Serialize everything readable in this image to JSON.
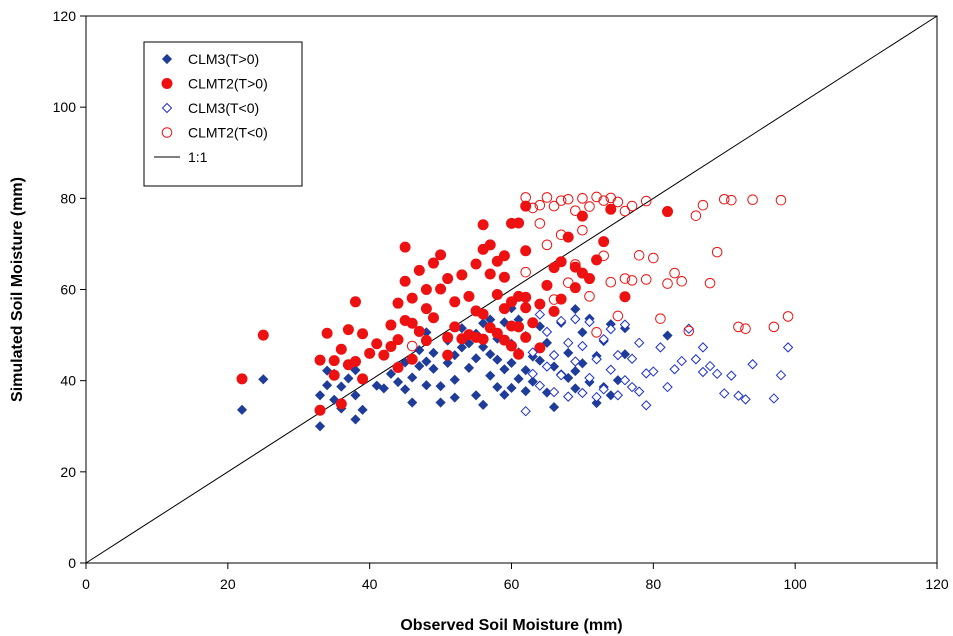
{
  "chart_data": {
    "type": "scatter",
    "title": "",
    "xlabel": "Observed Soil Moisture (mm)",
    "ylabel": "Simulated Soil Moisture (mm)",
    "xlim": [
      0,
      120
    ],
    "ylim": [
      0,
      120
    ],
    "x_ticks": [
      "0",
      "20",
      "40",
      "60",
      "80",
      "100",
      "120"
    ],
    "y_ticks": [
      "0",
      "20",
      "40",
      "60",
      "80",
      "100",
      "120"
    ],
    "grid": false,
    "legend_position": "top-left",
    "reference_line": {
      "name": "1:1",
      "from": [
        0,
        0
      ],
      "to": [
        120,
        120
      ],
      "color": "#000000"
    },
    "series": [
      {
        "name": "CLM3(T>0)",
        "marker": "diamond-filled",
        "color": "#1f3c99",
        "points": [
          [
            22,
            33.6
          ],
          [
            25,
            40.3
          ],
          [
            33,
            30
          ],
          [
            33,
            36.8
          ],
          [
            34,
            39
          ],
          [
            34,
            42.2
          ],
          [
            35,
            41.5
          ],
          [
            35,
            35.8
          ],
          [
            36,
            33.9
          ],
          [
            36,
            38.7
          ],
          [
            37,
            40.5
          ],
          [
            37,
            43.6
          ],
          [
            38,
            31.5
          ],
          [
            38,
            36.8
          ],
          [
            38,
            42.3
          ],
          [
            39,
            33.6
          ],
          [
            39,
            40.1
          ],
          [
            41,
            38.9
          ],
          [
            42,
            38.3
          ],
          [
            43,
            41.5
          ],
          [
            44,
            39.7
          ],
          [
            44,
            43.2
          ],
          [
            45,
            38.1
          ],
          [
            45,
            44
          ],
          [
            46,
            35.2
          ],
          [
            46,
            40.7
          ],
          [
            47,
            43.2
          ],
          [
            47,
            46.7
          ],
          [
            48,
            39
          ],
          [
            48,
            44.2
          ],
          [
            48,
            50.6
          ],
          [
            49,
            42.6
          ],
          [
            49,
            46.1
          ],
          [
            50,
            35.2
          ],
          [
            50,
            38.8
          ],
          [
            51,
            43.9
          ],
          [
            51,
            48.8
          ],
          [
            52,
            36.3
          ],
          [
            52,
            40.2
          ],
          [
            52,
            45.6
          ],
          [
            53,
            47.3
          ],
          [
            53,
            51.5
          ],
          [
            54,
            42.8
          ],
          [
            54,
            48.2
          ],
          [
            55,
            36.8
          ],
          [
            55,
            44.9
          ],
          [
            55,
            50.3
          ],
          [
            56,
            34.7
          ],
          [
            56,
            47.4
          ],
          [
            56,
            52.6
          ],
          [
            57,
            41.1
          ],
          [
            57,
            45.8
          ],
          [
            57,
            53.4
          ],
          [
            58,
            38.6
          ],
          [
            58,
            44.6
          ],
          [
            58,
            49.2
          ],
          [
            59,
            36.9
          ],
          [
            59,
            42.5
          ],
          [
            59,
            52.8
          ],
          [
            60,
            38.4
          ],
          [
            60,
            43.9
          ],
          [
            60,
            48.1
          ],
          [
            60,
            55.9
          ],
          [
            61,
            40.4
          ],
          [
            61,
            46.2
          ],
          [
            61,
            53.4
          ],
          [
            62,
            37.7
          ],
          [
            62,
            42.3
          ],
          [
            62,
            49.8
          ],
          [
            63,
            39.8
          ],
          [
            63,
            45.3
          ],
          [
            64,
            44.4
          ],
          [
            64,
            51.9
          ],
          [
            65,
            37.4
          ],
          [
            65,
            48.3
          ],
          [
            66,
            34.2
          ],
          [
            66,
            43.1
          ],
          [
            67,
            41.4
          ],
          [
            67,
            52.7
          ],
          [
            68,
            40.6
          ],
          [
            68,
            46.1
          ],
          [
            69,
            38.3
          ],
          [
            69,
            42.1
          ],
          [
            69,
            55.7
          ],
          [
            70,
            43.8
          ],
          [
            70,
            50.6
          ],
          [
            71,
            39.7
          ],
          [
            71,
            53.6
          ],
          [
            72,
            35.1
          ],
          [
            72,
            45.4
          ],
          [
            73,
            38.6
          ],
          [
            73,
            48.7
          ],
          [
            74,
            36.8
          ],
          [
            74,
            52.4
          ],
          [
            75,
            40.1
          ],
          [
            76,
            45.8
          ],
          [
            76,
            51.5
          ],
          [
            82,
            49.9
          ]
        ]
      },
      {
        "name": "CLMT2(T>0)",
        "marker": "circle-filled",
        "color": "#ee1111",
        "points": [
          [
            22,
            40.4
          ],
          [
            25,
            50
          ],
          [
            33,
            33.5
          ],
          [
            33,
            44.5
          ],
          [
            34,
            50.4
          ],
          [
            35,
            44.4
          ],
          [
            35,
            41.2
          ],
          [
            36,
            34.9
          ],
          [
            36,
            46.9
          ],
          [
            37,
            51.2
          ],
          [
            37,
            43.5
          ],
          [
            38,
            57.3
          ],
          [
            38,
            44.2
          ],
          [
            39,
            50.3
          ],
          [
            39,
            40.4
          ],
          [
            40,
            46
          ],
          [
            41,
            48.1
          ],
          [
            42,
            45.6
          ],
          [
            43,
            47.5
          ],
          [
            43,
            52.2
          ],
          [
            44,
            49
          ],
          [
            44,
            42.9
          ],
          [
            44,
            57
          ],
          [
            45,
            53.2
          ],
          [
            45,
            61.8
          ],
          [
            45,
            69.3
          ],
          [
            46,
            44.7
          ],
          [
            46,
            52.6
          ],
          [
            46,
            58.1
          ],
          [
            47,
            50.8
          ],
          [
            47,
            64.2
          ],
          [
            48,
            48.8
          ],
          [
            48,
            55.8
          ],
          [
            48,
            60
          ],
          [
            49,
            65.8
          ],
          [
            49,
            53.8
          ],
          [
            50,
            60.1
          ],
          [
            50,
            67.6
          ],
          [
            51,
            45.6
          ],
          [
            51,
            49.5
          ],
          [
            51,
            62.4
          ],
          [
            52,
            51.8
          ],
          [
            52,
            57.3
          ],
          [
            53,
            49.2
          ],
          [
            53,
            63.2
          ],
          [
            54,
            50.1
          ],
          [
            54,
            58.5
          ],
          [
            55,
            49.5
          ],
          [
            55,
            55.3
          ],
          [
            55,
            65.6
          ],
          [
            56,
            49.1
          ],
          [
            56,
            54.6
          ],
          [
            56,
            68.8
          ],
          [
            56,
            74.2
          ],
          [
            57,
            51.6
          ],
          [
            57,
            63.4
          ],
          [
            57,
            69.8
          ],
          [
            58,
            50.4
          ],
          [
            58,
            58.9
          ],
          [
            58,
            66.2
          ],
          [
            59,
            48.9
          ],
          [
            59,
            55.8
          ],
          [
            59,
            62.7
          ],
          [
            59,
            67.4
          ],
          [
            60,
            47.6
          ],
          [
            60,
            52
          ],
          [
            60,
            57.3
          ],
          [
            60,
            74.5
          ],
          [
            61,
            45.8
          ],
          [
            61,
            51.8
          ],
          [
            61,
            58.5
          ],
          [
            61,
            74.6
          ],
          [
            62,
            49.5
          ],
          [
            62,
            56
          ],
          [
            62,
            58.3
          ],
          [
            62,
            68.5
          ],
          [
            62,
            78.3
          ],
          [
            63,
            52.7
          ],
          [
            64,
            47.2
          ],
          [
            64,
            56.8
          ],
          [
            65,
            60.9
          ],
          [
            66,
            55.2
          ],
          [
            66,
            64.8
          ],
          [
            67,
            57.9
          ],
          [
            67,
            66.1
          ],
          [
            68,
            71.5
          ],
          [
            69,
            64.9
          ],
          [
            69,
            60.4
          ],
          [
            70,
            63.6
          ],
          [
            70,
            76.1
          ],
          [
            71,
            62.4
          ],
          [
            72,
            66.5
          ],
          [
            73,
            70.5
          ],
          [
            74,
            77.6
          ],
          [
            76,
            58.4
          ],
          [
            82,
            77.1
          ]
        ]
      },
      {
        "name": "CLM3(T<0)",
        "marker": "diamond-open",
        "color": "#1c2fd0",
        "points": [
          [
            62,
            33.3
          ],
          [
            63,
            41.5
          ],
          [
            63,
            46.2
          ],
          [
            64,
            38.9
          ],
          [
            64,
            54.5
          ],
          [
            65,
            43.1
          ],
          [
            65,
            50.7
          ],
          [
            66,
            37.5
          ],
          [
            66,
            45.6
          ],
          [
            67,
            53.1
          ],
          [
            67,
            41.2
          ],
          [
            68,
            36.5
          ],
          [
            68,
            48.3
          ],
          [
            69,
            44.2
          ],
          [
            69,
            53.5
          ],
          [
            70,
            37.3
          ],
          [
            70,
            47.6
          ],
          [
            71,
            40.6
          ],
          [
            71,
            52.9
          ],
          [
            72,
            36.4
          ],
          [
            72,
            44.7
          ],
          [
            73,
            49.1
          ],
          [
            73,
            38.1
          ],
          [
            74,
            42.4
          ],
          [
            74,
            51.3
          ],
          [
            75,
            45.6
          ],
          [
            75,
            36.8
          ],
          [
            76,
            52.3
          ],
          [
            76,
            40.1
          ],
          [
            77,
            44.8
          ],
          [
            77,
            38.6
          ],
          [
            78,
            37.6
          ],
          [
            78,
            48.3
          ],
          [
            79,
            41.6
          ],
          [
            79,
            34.6
          ],
          [
            80,
            42
          ],
          [
            81,
            47.3
          ],
          [
            82,
            38.6
          ],
          [
            83,
            42.5
          ],
          [
            84,
            44.3
          ],
          [
            85,
            51.4
          ],
          [
            86,
            44.7
          ],
          [
            87,
            41.9
          ],
          [
            87,
            47.3
          ],
          [
            88,
            43.2
          ],
          [
            89,
            41.5
          ],
          [
            90,
            37.2
          ],
          [
            91,
            41.1
          ],
          [
            92,
            36.7
          ],
          [
            93,
            35.9
          ],
          [
            94,
            43.6
          ],
          [
            97,
            36.1
          ],
          [
            98,
            41.2
          ],
          [
            99,
            47.3
          ]
        ]
      },
      {
        "name": "CLMT2(T<0)",
        "marker": "circle-open",
        "color": "#ee1111",
        "points": [
          [
            46,
            47.6
          ],
          [
            62,
            80.2
          ],
          [
            62,
            63.8
          ],
          [
            63,
            77.9
          ],
          [
            64,
            78.5
          ],
          [
            64,
            74.5
          ],
          [
            65,
            80.2
          ],
          [
            65,
            69.8
          ],
          [
            66,
            78.3
          ],
          [
            66,
            57.8
          ],
          [
            67,
            79.5
          ],
          [
            67,
            72
          ],
          [
            68,
            79.8
          ],
          [
            68,
            61.5
          ],
          [
            69,
            77.3
          ],
          [
            69,
            65.5
          ],
          [
            70,
            80
          ],
          [
            70,
            73
          ],
          [
            71,
            78.2
          ],
          [
            71,
            58.5
          ],
          [
            72,
            80.3
          ],
          [
            72,
            50.6
          ],
          [
            73,
            79.5
          ],
          [
            73,
            67.4
          ],
          [
            74,
            80.1
          ],
          [
            74,
            61.6
          ],
          [
            75,
            79.2
          ],
          [
            75,
            54.2
          ],
          [
            76,
            77.2
          ],
          [
            76,
            62.4
          ],
          [
            77,
            78.3
          ],
          [
            77,
            62
          ],
          [
            78,
            67.5
          ],
          [
            79,
            79.4
          ],
          [
            79,
            62.2
          ],
          [
            80,
            66.9
          ],
          [
            81,
            53.6
          ],
          [
            82,
            61.3
          ],
          [
            83,
            63.6
          ],
          [
            84,
            61.8
          ],
          [
            85,
            50.9
          ],
          [
            86,
            76.2
          ],
          [
            87,
            78.5
          ],
          [
            88,
            61.4
          ],
          [
            89,
            68.2
          ],
          [
            90,
            79.8
          ],
          [
            91,
            79.6
          ],
          [
            92,
            51.8
          ],
          [
            93,
            51.4
          ],
          [
            94,
            79.7
          ],
          [
            97,
            51.8
          ],
          [
            98,
            79.6
          ],
          [
            99,
            54.1
          ]
        ]
      }
    ]
  }
}
